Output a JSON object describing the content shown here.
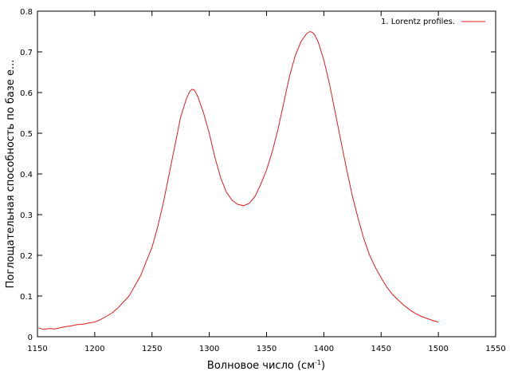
{
  "chart_data": {
    "type": "line",
    "xlabel": "Волновое число (см",
    "xlabel_sup": "-1",
    "xlabel_close": ")",
    "ylabel": "Поглощательная способность по базе е...",
    "xlim": [
      1150,
      1550
    ],
    "ylim": [
      0,
      0.8
    ],
    "x_ticks": [
      1150,
      1200,
      1250,
      1300,
      1350,
      1400,
      1450,
      1500,
      1550
    ],
    "y_ticks": [
      0,
      0.1,
      0.2,
      0.3,
      0.4,
      0.5,
      0.6,
      0.7,
      0.8
    ],
    "grid": false,
    "legend_position": "top-right",
    "series": [
      {
        "name": "1. Lorentz profiles.",
        "color": "#e41a1c",
        "x": [
          1151,
          1155,
          1160,
          1165,
          1170,
          1175,
          1180,
          1185,
          1190,
          1195,
          1200,
          1205,
          1210,
          1215,
          1220,
          1225,
          1230,
          1235,
          1240,
          1245,
          1250,
          1255,
          1260,
          1265,
          1270,
          1275,
          1280,
          1283,
          1285,
          1287,
          1290,
          1295,
          1300,
          1305,
          1310,
          1315,
          1320,
          1325,
          1330,
          1335,
          1340,
          1345,
          1350,
          1355,
          1360,
          1365,
          1370,
          1375,
          1380,
          1385,
          1388,
          1390,
          1392,
          1395,
          1400,
          1405,
          1410,
          1415,
          1420,
          1425,
          1430,
          1435,
          1440,
          1445,
          1450,
          1455,
          1460,
          1465,
          1470,
          1475,
          1480,
          1485,
          1490,
          1495,
          1500
        ],
        "y": [
          0.022,
          0.018,
          0.02,
          0.019,
          0.022,
          0.025,
          0.027,
          0.03,
          0.031,
          0.034,
          0.036,
          0.042,
          0.05,
          0.058,
          0.07,
          0.085,
          0.1,
          0.125,
          0.15,
          0.185,
          0.22,
          0.27,
          0.33,
          0.4,
          0.47,
          0.54,
          0.585,
          0.603,
          0.608,
          0.606,
          0.59,
          0.55,
          0.5,
          0.44,
          0.39,
          0.355,
          0.335,
          0.325,
          0.322,
          0.328,
          0.345,
          0.375,
          0.41,
          0.455,
          0.51,
          0.575,
          0.64,
          0.69,
          0.725,
          0.745,
          0.75,
          0.748,
          0.742,
          0.725,
          0.68,
          0.62,
          0.55,
          0.48,
          0.41,
          0.345,
          0.29,
          0.24,
          0.2,
          0.17,
          0.145,
          0.122,
          0.104,
          0.09,
          0.077,
          0.066,
          0.057,
          0.05,
          0.045,
          0.04,
          0.036
        ]
      }
    ]
  }
}
